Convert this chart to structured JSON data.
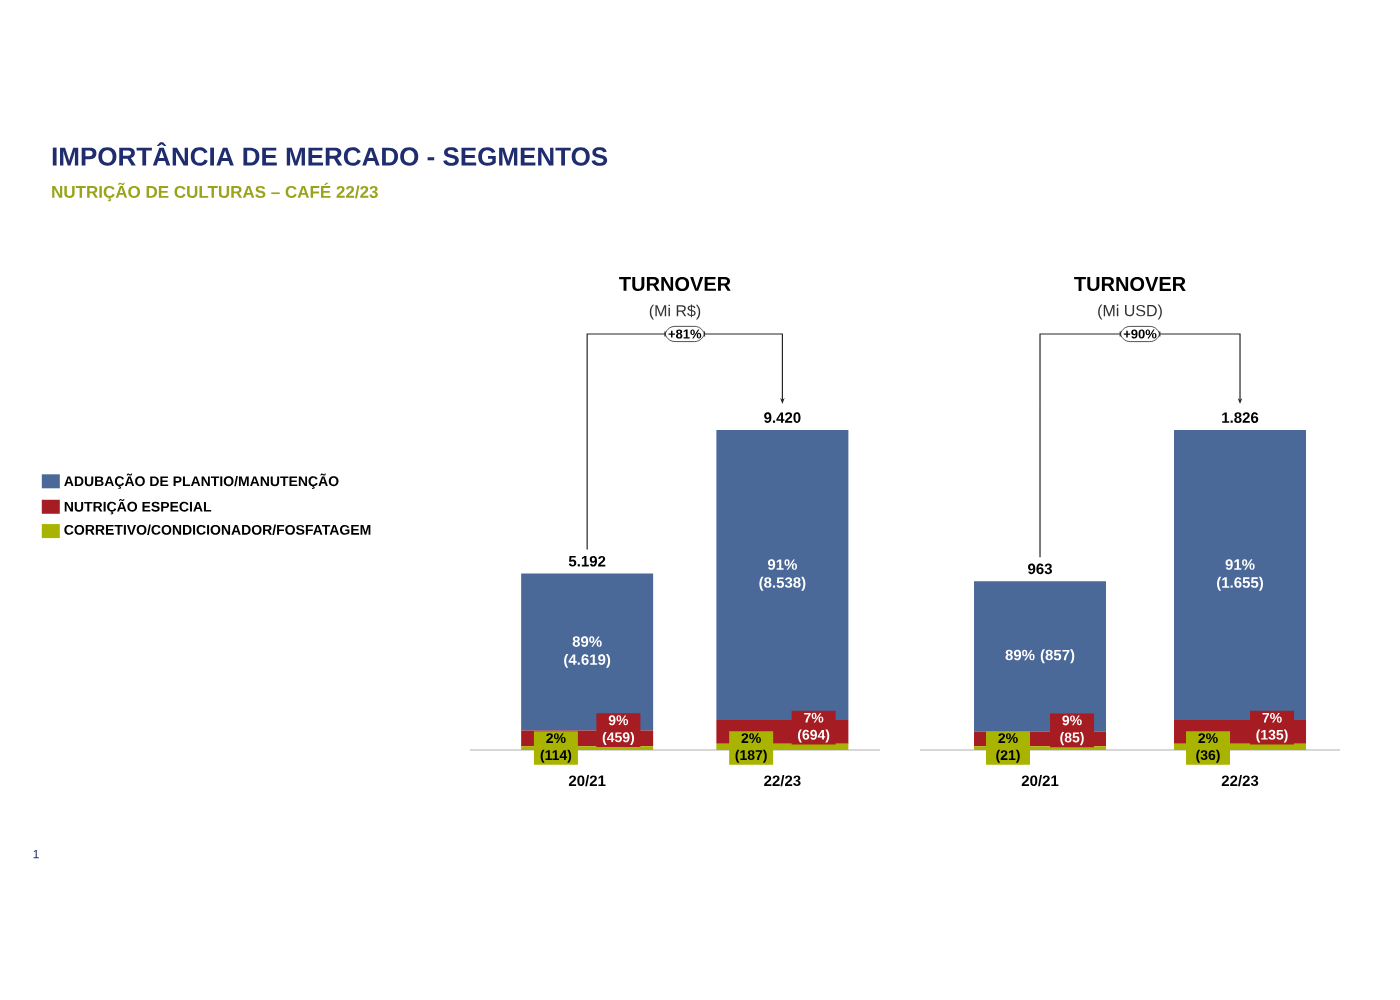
{
  "chart_data": [
    {
      "type": "other",
      "title": "IMPORTÂNCIA DE MERCADO  - SEGMENTOS",
      "subtitle": "NUTRIÇÃO DE CULTURAS – CAFÉ 22/23",
      "annotations": [
        "1"
      ]
    },
    {
      "type": "bar",
      "title": "TURNOVER",
      "subtitle": "(Mi R$)",
      "stacked": true,
      "tick_labels": "x",
      "legend": "left",
      "categories": [
        "20/21",
        "22/23"
      ],
      "series": [
        {
          "name": "CORRETIVO/CONDICIONADOR/FOSFATAGEM",
          "color": "#a8b400",
          "values": [
            114,
            187
          ],
          "value_labels": [
            "2% (114)",
            "2% (187)"
          ]
        },
        {
          "name": "NUTRIÇÃO ESPECIAL",
          "color": "#a51d22",
          "values": [
            459,
            694
          ],
          "value_labels": [
            "9% (459)",
            "7% (694)"
          ]
        },
        {
          "name": "ADUBAÇÃO DE PLANTIO/MANUTENÇÃO",
          "color": "#4a6898",
          "values": [
            4619,
            8538
          ],
          "value_labels": [
            "89% (4.619)",
            "91% (8.538)"
          ]
        }
      ],
      "totals": [
        "5.192",
        "9.420"
      ],
      "annotations": [
        "+81%"
      ]
    },
    {
      "type": "bar",
      "title": "TURNOVER",
      "subtitle": "(Mi USD)",
      "stacked": true,
      "tick_labels": "x",
      "categories": [
        "20/21",
        "22/23"
      ],
      "series": [
        {
          "color": "#a8b400",
          "values": [
            21,
            36
          ],
          "value_labels": [
            "2% (21)",
            "2% (36)"
          ]
        },
        {
          "color": "#a51d22",
          "values": [
            85,
            135
          ],
          "value_labels": [
            "9% (85)",
            "7% (135)"
          ]
        },
        {
          "color": "#4a6898",
          "values": [
            857,
            1655
          ],
          "value_labels": [
            "89% (857)",
            "91% (1.655)"
          ]
        }
      ],
      "totals": [
        "963",
        "1.826"
      ],
      "annotations": [
        "+90%"
      ]
    }
  ]
}
